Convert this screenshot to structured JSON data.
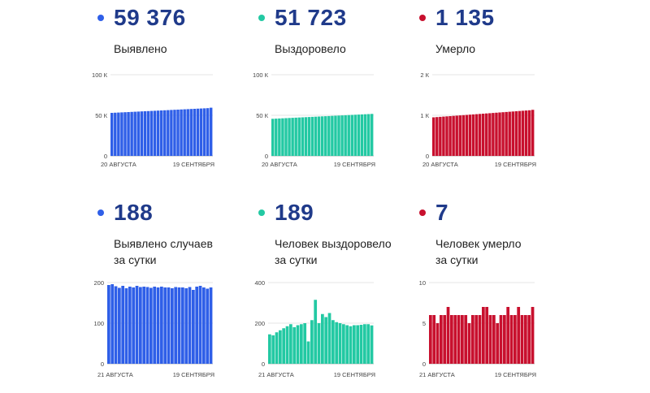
{
  "colors": {
    "confirmed": "#2f5fe8",
    "recovered": "#23c9a3",
    "deaths": "#c8102e",
    "value_text": "#1f3a8a"
  },
  "panels": [
    {
      "value": "59 376",
      "label_lines": [
        "Выявлено"
      ],
      "color_key": "confirmed"
    },
    {
      "value": "51 723",
      "label_lines": [
        "Выздоровело"
      ],
      "color_key": "recovered"
    },
    {
      "value": "1 135",
      "label_lines": [
        "Умерло"
      ],
      "color_key": "deaths"
    },
    {
      "value": "188",
      "label_lines": [
        "Выявлено случаев",
        "за сутки"
      ],
      "color_key": "confirmed"
    },
    {
      "value": "189",
      "label_lines": [
        "Человек выздоровело",
        "за сутки"
      ],
      "color_key": "recovered"
    },
    {
      "value": "7",
      "label_lines": [
        "Человек умерло",
        "за сутки"
      ],
      "color_key": "deaths"
    }
  ],
  "chart_data": [
    {
      "type": "bar",
      "y_ticks": [
        "0",
        "50 К",
        "100 К"
      ],
      "ylim": [
        0,
        100000
      ],
      "x_start_label": "20 АВГУСТА",
      "x_end_label": "19 СЕНТЯБРЯ",
      "series": [
        {
          "values": [
            53000,
            53200,
            53400,
            53600,
            53800,
            54000,
            54200,
            54400,
            54600,
            54800,
            55000,
            55200,
            55400,
            55600,
            55800,
            56000,
            56200,
            56400,
            56600,
            56800,
            57000,
            57200,
            57400,
            57600,
            57800,
            58000,
            58200,
            58400,
            58600,
            58800,
            59376
          ]
        }
      ]
    },
    {
      "type": "bar",
      "y_ticks": [
        "0",
        "50 К",
        "100 К"
      ],
      "ylim": [
        0,
        100000
      ],
      "x_start_label": "20 АВГУСТА",
      "x_end_label": "19 СЕНТЯБРЯ",
      "series": [
        {
          "values": [
            45700,
            45900,
            46100,
            46300,
            46500,
            46700,
            46900,
            47100,
            47300,
            47500,
            47700,
            47900,
            48100,
            48300,
            48500,
            48700,
            48900,
            49100,
            49300,
            49500,
            49700,
            49900,
            50100,
            50300,
            50500,
            50700,
            50900,
            51100,
            51300,
            51500,
            51723
          ]
        }
      ]
    },
    {
      "type": "bar",
      "y_ticks": [
        "0",
        "1 К",
        "2 К"
      ],
      "ylim": [
        0,
        2000
      ],
      "x_start_label": "20 АВГУСТА",
      "x_end_label": "19 СЕНТЯБРЯ",
      "series": [
        {
          "values": [
            950,
            956,
            962,
            968,
            974,
            980,
            986,
            992,
            998,
            1004,
            1010,
            1016,
            1022,
            1028,
            1034,
            1040,
            1046,
            1052,
            1058,
            1064,
            1070,
            1076,
            1082,
            1088,
            1094,
            1100,
            1106,
            1112,
            1118,
            1124,
            1135
          ]
        }
      ]
    },
    {
      "type": "bar",
      "y_ticks": [
        "0",
        "100",
        "200"
      ],
      "ylim": [
        0,
        200
      ],
      "x_start_label": "21 АВГУСТА",
      "x_end_label": "19 СЕНТЯБРЯ",
      "series": [
        {
          "values": [
            194,
            196,
            191,
            187,
            192,
            186,
            190,
            188,
            192,
            189,
            190,
            189,
            187,
            190,
            188,
            190,
            188,
            188,
            186,
            189,
            188,
            188,
            186,
            189,
            182,
            190,
            192,
            188,
            185,
            188
          ]
        }
      ]
    },
    {
      "type": "bar",
      "y_ticks": [
        "0",
        "200",
        "400"
      ],
      "ylim": [
        0,
        400
      ],
      "x_start_label": "21 АВГУСТА",
      "x_end_label": "19 СЕНТЯБРЯ",
      "series": [
        {
          "values": [
            145,
            140,
            155,
            165,
            175,
            185,
            195,
            180,
            190,
            195,
            200,
            110,
            215,
            315,
            200,
            245,
            230,
            250,
            215,
            205,
            200,
            195,
            190,
            185,
            190,
            190,
            192,
            195,
            195,
            189
          ]
        }
      ]
    },
    {
      "type": "bar",
      "y_ticks": [
        "0",
        "5",
        "10"
      ],
      "ylim": [
        0,
        10
      ],
      "x_start_label": "21 АВГУСТА",
      "x_end_label": "19 СЕНТЯБРЯ",
      "series": [
        {
          "values": [
            6,
            6,
            5,
            6,
            6,
            7,
            6,
            6,
            6,
            6,
            6,
            5,
            6,
            6,
            6,
            7,
            7,
            6,
            6,
            5,
            6,
            6,
            7,
            6,
            6,
            7,
            6,
            6,
            6,
            7
          ]
        }
      ]
    }
  ]
}
